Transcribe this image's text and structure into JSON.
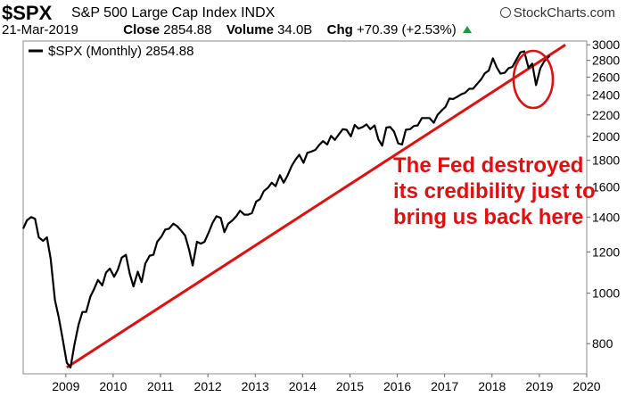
{
  "header": {
    "symbol": "$SPX",
    "name": "S&P 500 Large Cap Index",
    "exchange": "INDX",
    "date": "21-Mar-2019",
    "close_label": "Close",
    "close_value": "2854.88",
    "volume_label": "Volume",
    "volume_value": "34.0B",
    "chg_label": "Chg",
    "chg_value": "+70.39 (+2.53%)",
    "brand": "StockCharts.com"
  },
  "legend": {
    "label": "$SPX (Monthly) 2854.88"
  },
  "annotation": {
    "lines": [
      "The Fed destroyed",
      "its credibility just to",
      "bring us back here"
    ]
  },
  "colors": {
    "price_line": "#000000",
    "trend_line": "#e01010",
    "annotation": "#e01010",
    "up_arrow": "#1a9b3a"
  },
  "chart_data": {
    "type": "line",
    "y_scale": "log",
    "ylim": [
      700,
      3050
    ],
    "xlim": [
      2008.1,
      2020.0
    ],
    "x_ticks": [
      "2009",
      "2010",
      "2011",
      "2012",
      "2013",
      "2014",
      "2015",
      "2016",
      "2017",
      "2018",
      "2019",
      "2020"
    ],
    "y_ticks": [
      "800",
      "1000",
      "1200",
      "1400",
      "1600",
      "1800",
      "2000",
      "2200",
      "2400",
      "2600",
      "2800",
      "3000"
    ],
    "grid": false,
    "legend_position": "top-left",
    "series": [
      {
        "name": "$SPX (Monthly)",
        "x": [
          2008.1,
          2008.18,
          2008.27,
          2008.35,
          2008.43,
          2008.52,
          2008.6,
          2008.68,
          2008.77,
          2008.85,
          2008.93,
          2009.02,
          2009.1,
          2009.18,
          2009.27,
          2009.35,
          2009.43,
          2009.52,
          2009.6,
          2009.68,
          2009.77,
          2009.85,
          2009.93,
          2010.02,
          2010.1,
          2010.18,
          2010.27,
          2010.35,
          2010.43,
          2010.52,
          2010.6,
          2010.68,
          2010.77,
          2010.85,
          2010.93,
          2011.02,
          2011.1,
          2011.18,
          2011.27,
          2011.35,
          2011.43,
          2011.52,
          2011.6,
          2011.68,
          2011.77,
          2011.85,
          2011.93,
          2012.02,
          2012.1,
          2012.18,
          2012.27,
          2012.35,
          2012.43,
          2012.52,
          2012.6,
          2012.68,
          2012.77,
          2012.85,
          2012.93,
          2013.02,
          2013.1,
          2013.18,
          2013.27,
          2013.35,
          2013.43,
          2013.52,
          2013.6,
          2013.68,
          2013.77,
          2013.85,
          2013.93,
          2014.02,
          2014.1,
          2014.18,
          2014.27,
          2014.35,
          2014.43,
          2014.52,
          2014.6,
          2014.68,
          2014.77,
          2014.85,
          2014.93,
          2015.02,
          2015.1,
          2015.18,
          2015.27,
          2015.35,
          2015.43,
          2015.52,
          2015.6,
          2015.68,
          2015.77,
          2015.85,
          2015.93,
          2016.02,
          2016.1,
          2016.18,
          2016.27,
          2016.35,
          2016.43,
          2016.52,
          2016.6,
          2016.68,
          2016.77,
          2016.85,
          2016.93,
          2017.02,
          2017.1,
          2017.18,
          2017.27,
          2017.35,
          2017.43,
          2017.52,
          2017.6,
          2017.68,
          2017.77,
          2017.85,
          2017.93,
          2018.02,
          2018.1,
          2018.18,
          2018.27,
          2018.35,
          2018.43,
          2018.52,
          2018.6,
          2018.68,
          2018.77,
          2018.85,
          2018.93,
          2019.02,
          2019.1,
          2019.18,
          2019.22
        ],
        "values": [
          1330,
          1380,
          1400,
          1390,
          1280,
          1260,
          1280,
          1165,
          970,
          900,
          820,
          735,
          720,
          795,
          870,
          920,
          920,
          985,
          1020,
          1060,
          1035,
          1095,
          1115,
          1075,
          1110,
          1170,
          1185,
          1090,
          1030,
          1100,
          1050,
          1140,
          1180,
          1185,
          1255,
          1285,
          1325,
          1330,
          1360,
          1345,
          1320,
          1290,
          1215,
          1130,
          1255,
          1245,
          1255,
          1310,
          1365,
          1405,
          1395,
          1310,
          1360,
          1380,
          1405,
          1440,
          1415,
          1415,
          1425,
          1500,
          1515,
          1570,
          1595,
          1630,
          1605,
          1685,
          1630,
          1680,
          1755,
          1805,
          1845,
          1780,
          1860,
          1870,
          1885,
          1925,
          1960,
          1930,
          2005,
          1970,
          2020,
          2065,
          2060,
          2000,
          2105,
          2070,
          2085,
          2110,
          2065,
          2100,
          1975,
          1920,
          2080,
          2085,
          2045,
          1940,
          1930,
          2060,
          2065,
          2095,
          2100,
          2170,
          2170,
          2170,
          2125,
          2200,
          2240,
          2280,
          2365,
          2360,
          2385,
          2410,
          2425,
          2470,
          2470,
          2520,
          2575,
          2645,
          2675,
          2825,
          2715,
          2640,
          2650,
          2705,
          2720,
          2815,
          2900,
          2915,
          2710,
          2760,
          2510,
          2705,
          2785,
          2835,
          2855
        ]
      },
      {
        "name": "",
        "type": "trendline",
        "x": [
          2009.02,
          2019.55
        ],
        "values": [
          720,
          3000
        ]
      }
    ]
  }
}
